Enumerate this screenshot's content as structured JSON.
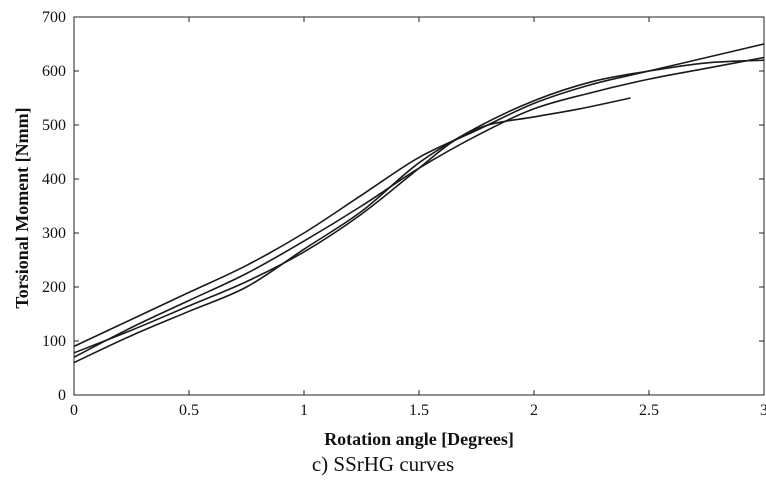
{
  "chart_data": {
    "type": "line",
    "xlabel": "Rotation angle [Degrees]",
    "ylabel": "Torsional Moment [Nmm]",
    "caption": "c) SSrHG curves",
    "xlim": [
      0,
      3
    ],
    "ylim": [
      0,
      700
    ],
    "xticks": [
      0,
      0.5,
      1,
      1.5,
      2,
      2.5,
      3
    ],
    "xtick_labels": [
      "0",
      "0.5",
      "1",
      "1.5",
      "2",
      "2.5",
      "3"
    ],
    "yticks": [
      0,
      100,
      200,
      300,
      400,
      500,
      600,
      700
    ],
    "ytick_labels": [
      "0",
      "100",
      "200",
      "300",
      "400",
      "500",
      "600",
      "700"
    ],
    "grid": false,
    "series": [
      {
        "x": [
          0,
          0.25,
          0.5,
          0.75,
          1.0,
          1.25,
          1.5,
          1.75,
          2.0,
          2.25,
          2.5,
          2.75,
          3.0
        ],
        "y": [
          90,
          140,
          190,
          240,
          300,
          370,
          440,
          490,
          540,
          575,
          600,
          625,
          650
        ]
      },
      {
        "x": [
          0,
          0.25,
          0.5,
          0.75,
          1.0,
          1.25,
          1.5,
          1.75,
          2.0,
          2.25,
          2.5,
          2.75,
          3.0
        ],
        "y": [
          70,
          125,
          175,
          225,
          285,
          350,
          420,
          480,
          530,
          560,
          585,
          605,
          625
        ]
      },
      {
        "x": [
          0,
          0.25,
          0.5,
          0.75,
          1.0,
          1.25,
          1.5,
          1.75,
          2.0,
          2.25,
          2.5,
          2.75,
          3.0
        ],
        "y": [
          60,
          110,
          155,
          200,
          270,
          340,
          430,
          495,
          545,
          580,
          600,
          615,
          620
        ]
      },
      {
        "x": [
          0,
          0.25,
          0.5,
          0.75,
          1.0,
          1.25,
          1.5,
          1.65,
          1.8,
          2.0,
          2.2,
          2.42
        ],
        "y": [
          78,
          120,
          165,
          210,
          265,
          335,
          420,
          470,
          500,
          515,
          530,
          550
        ]
      }
    ]
  }
}
